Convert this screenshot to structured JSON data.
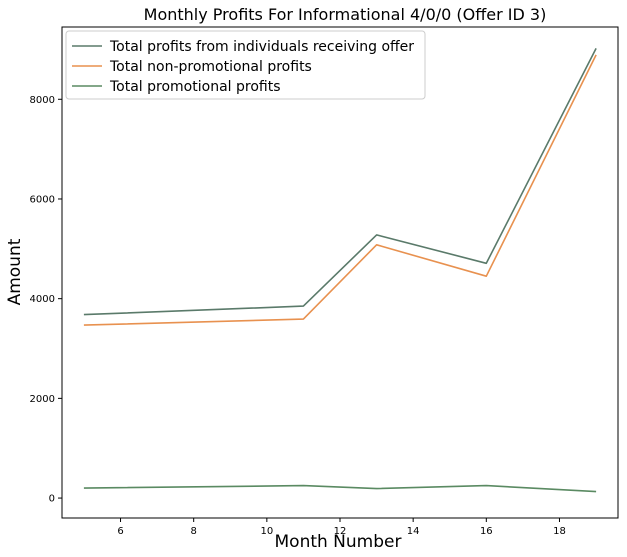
{
  "chart_data": {
    "type": "line",
    "title": "Monthly Profits For Informational 4/0/0 (Offer ID 3)",
    "xlabel": "Month Number",
    "ylabel": "Amount",
    "xlim": [
      4.4,
      19.6
    ],
    "ylim": [
      -400,
      9450
    ],
    "xticks": [
      6,
      8,
      10,
      12,
      14,
      16,
      18
    ],
    "yticks": [
      0,
      2000,
      4000,
      6000,
      8000
    ],
    "grid": false,
    "legend_position": "top-left",
    "x": [
      5,
      11,
      13,
      16,
      19
    ],
    "series": [
      {
        "name": "Total profits from individuals receiving offer",
        "color": "#5a7a6a",
        "values": [
          3680,
          3850,
          5280,
          4710,
          9020
        ]
      },
      {
        "name": "Total non-promotional profits",
        "color": "#e8914f",
        "values": [
          3470,
          3590,
          5080,
          4450,
          8890
        ]
      },
      {
        "name": "Total promotional profits",
        "color": "#5a8a62",
        "values": [
          200,
          250,
          190,
          250,
          130
        ]
      }
    ]
  }
}
